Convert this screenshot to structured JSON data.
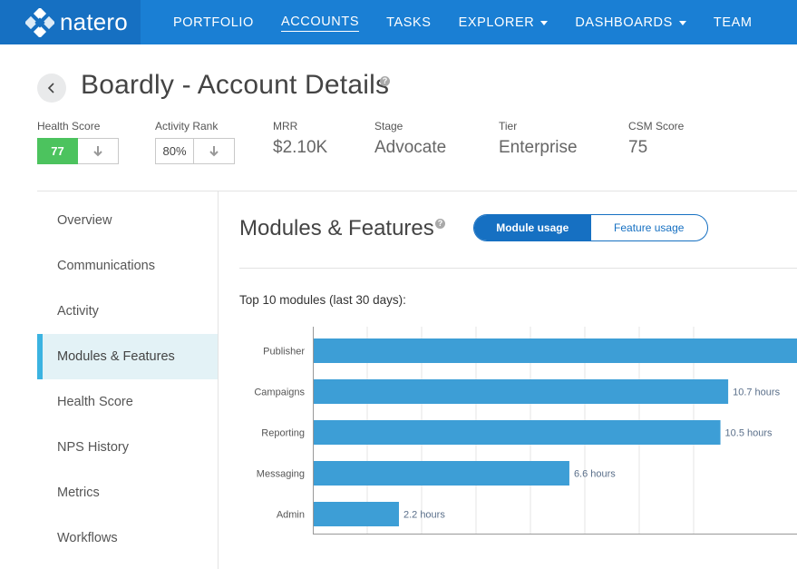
{
  "brand": {
    "name": "natero"
  },
  "nav": {
    "items": [
      {
        "label": "PORTFOLIO",
        "active": false,
        "dropdown": false
      },
      {
        "label": "ACCOUNTS",
        "active": true,
        "dropdown": false
      },
      {
        "label": "TASKS",
        "active": false,
        "dropdown": false
      },
      {
        "label": "EXPLORER",
        "active": false,
        "dropdown": true
      },
      {
        "label": "DASHBOARDS",
        "active": false,
        "dropdown": true
      },
      {
        "label": "TEAM",
        "active": false,
        "dropdown": false
      }
    ]
  },
  "header": {
    "title": "Boardly - Account Details"
  },
  "metrics": {
    "health_score": {
      "label": "Health Score",
      "value": "77"
    },
    "activity_rank": {
      "label": "Activity Rank",
      "value": "80%"
    },
    "mrr": {
      "label": "MRR",
      "value": "$2.10K"
    },
    "stage": {
      "label": "Stage",
      "value": "Advocate"
    },
    "tier": {
      "label": "Tier",
      "value": "Enterprise"
    },
    "csm_score": {
      "label": "CSM Score",
      "value": "75"
    }
  },
  "colors": {
    "nav_bg": "#1a7fd4",
    "brand_bg": "#1670c2",
    "health_green": "#4cc35e",
    "bar_blue": "#3d9ed6",
    "sidebar_active_bar": "#3bb3e1"
  },
  "sidebar": {
    "items": [
      {
        "label": "Overview",
        "active": false
      },
      {
        "label": "Communications",
        "active": false
      },
      {
        "label": "Activity",
        "active": false
      },
      {
        "label": "Modules & Features",
        "active": true
      },
      {
        "label": "Health Score",
        "active": false
      },
      {
        "label": "NPS History",
        "active": false
      },
      {
        "label": "Metrics",
        "active": false
      },
      {
        "label": "Workflows",
        "active": false
      }
    ]
  },
  "main": {
    "title": "Modules & Features",
    "toggle": {
      "option_a": "Module usage",
      "option_b": "Feature usage",
      "selected": "option_a"
    },
    "chart_heading": "Top 10 modules (last 30 days):"
  },
  "chart_data": {
    "type": "bar",
    "orientation": "horizontal",
    "title": "Top 10 modules (last 30 days):",
    "categories": [
      "Publisher",
      "Campaigns",
      "Reporting",
      "Messaging",
      "Admin"
    ],
    "values": [
      13.0,
      10.7,
      10.5,
      6.6,
      2.2
    ],
    "value_labels": [
      "",
      "10.7 hours",
      "10.5 hours",
      "6.6 hours",
      "2.2 hours"
    ],
    "unit": "hours",
    "xlim": [
      0,
      12.5
    ],
    "grid": true
  }
}
